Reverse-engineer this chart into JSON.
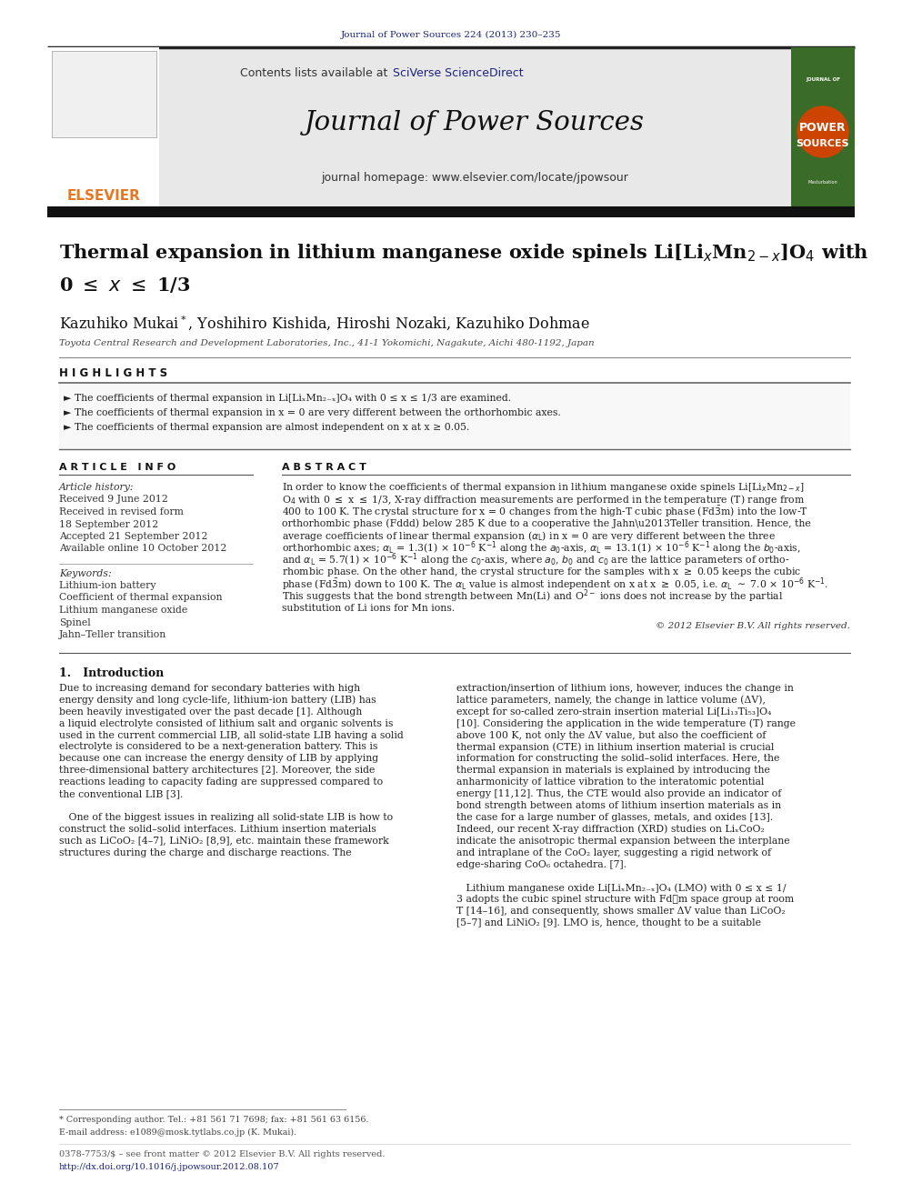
{
  "journal_ref": "Journal of Power Sources 224 (2013) 230–235",
  "journal_name": "Journal of Power Sources",
  "contents_text": "Contents lists available at ",
  "sciverse_text": "SciVerse ScienceDirect",
  "homepage_text": "journal homepage: www.elsevier.com/locate/jpowsour",
  "title_line1": "Thermal expansion in lithium manganese oxide spinels Li[Li$_x$Mn$_{2-x}$]O$_4$ with",
  "title_line2": "0 $\\leq$ $x$ $\\leq$ 1/3",
  "authors": "Kazuhiko Mukai$^*$, Yoshihiro Kishida, Hiroshi Nozaki, Kazuhiko Dohmae",
  "affiliation": "Toyota Central Research and Development Laboratories, Inc., 41-1 Yokomichi, Nagakute, Aichi 480-1192, Japan",
  "highlights_title": "H I G H L I G H T S",
  "highlight1": "► The coefficients of thermal expansion in Li[LiₓMn₂₋ₓ]O₄ with 0 ≤ x ≤ 1/3 are examined.",
  "highlight2": "► The coefficients of thermal expansion in x = 0 are very different between the orthorhombic axes.",
  "highlight3": "► The coefficients of thermal expansion are almost independent on x at x ≥ 0.05.",
  "article_info_title": "A R T I C L E   I N F O",
  "article_history_label": "Article history:",
  "received1": "Received 9 June 2012",
  "received2": "Received in revised form",
  "received2b": "18 September 2012",
  "accepted": "Accepted 21 September 2012",
  "available": "Available online 10 October 2012",
  "keywords_label": "Keywords:",
  "keyword1": "Lithium-ion battery",
  "keyword2": "Coefficient of thermal expansion",
  "keyword3": "Lithium manganese oxide",
  "keyword4": "Spinel",
  "keyword5": "Jahn–Teller transition",
  "abstract_title": "A B S T R A C T",
  "copyright": "© 2012 Elsevier B.V. All rights reserved.",
  "intro_title": "1.   Introduction",
  "footnote1": "* Corresponding author. Tel.: +81 561 71 7698; fax: +81 561 63 6156.",
  "footnote2": "E-mail address: e1089@mosk.tytlabs.co.jp (K. Mukai).",
  "footer1": "0378-7753/$ – see front matter © 2012 Elsevier B.V. All rights reserved.",
  "footer2": "http://dx.doi.org/10.1016/j.jpowsour.2012.08.107",
  "bg_color": "#ffffff",
  "header_bg": "#e8e8e8",
  "link_color": "#1a237e",
  "elsevier_orange": "#e87722",
  "cover_green": "#3a6b28",
  "black_bar": "#111111"
}
